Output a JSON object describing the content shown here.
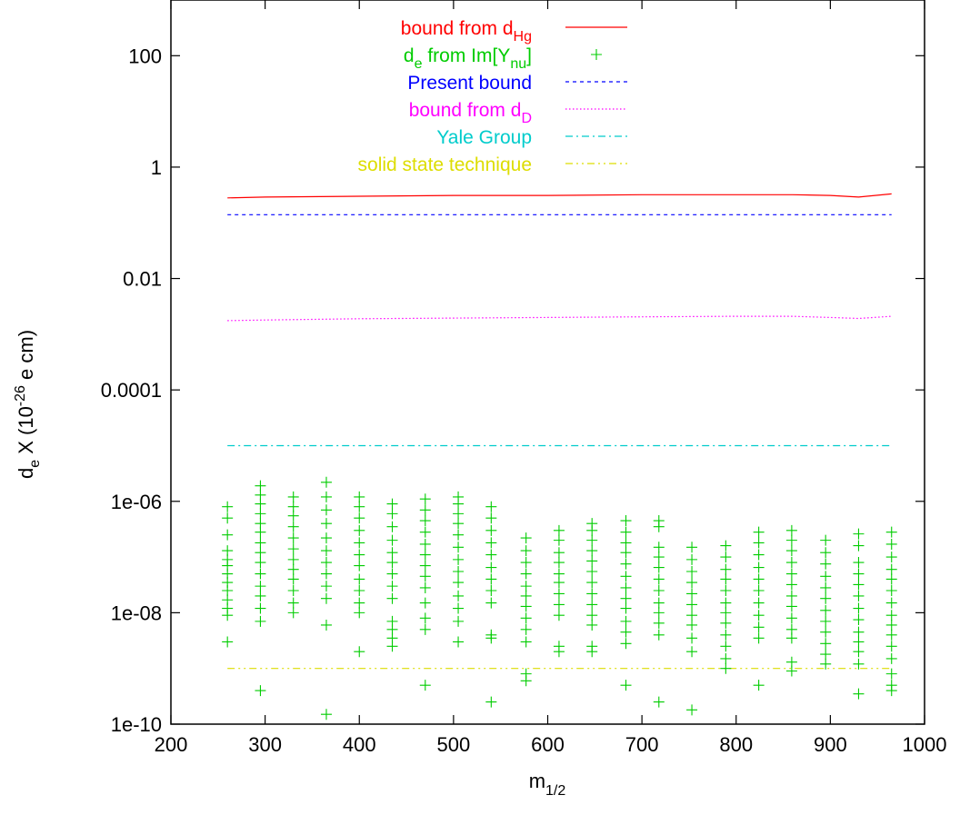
{
  "chart_data": {
    "type": "line",
    "xlabel": {
      "base": "m",
      "sub": "1/2"
    },
    "ylabel": {
      "main": "d",
      "sub": "e",
      "rest": "  X (10",
      "sup": "-26",
      "tail": " e cm)"
    },
    "xlim": [
      200,
      1000
    ],
    "ylim": [
      1e-10,
      1000
    ],
    "y_scale": "log",
    "grid": false,
    "legend_position": "top-center",
    "x_ticks": [
      200,
      300,
      400,
      500,
      600,
      700,
      800,
      900,
      1000
    ],
    "x_tick_labels": [
      "200",
      "300",
      "400",
      "500",
      "600",
      "700",
      "800",
      "900",
      "1000"
    ],
    "y_ticks": [
      1e-10,
      1e-08,
      1e-06,
      0.0001,
      0.01,
      1,
      100
    ],
    "y_tick_labels": [
      "1e-10",
      "1e-08",
      "1e-06",
      "0.0001",
      "0.01",
      "1",
      "100"
    ],
    "legend": [
      {
        "parts": [
          {
            "t": "bound from d"
          },
          {
            "t": "Hg",
            "sub": true
          }
        ],
        "color": "#ff0000",
        "style": "solid"
      },
      {
        "parts": [
          {
            "t": "d"
          },
          {
            "t": "e",
            "sub": true
          },
          {
            "t": " from Im[Y"
          },
          {
            "t": "nu",
            "sub": true
          },
          {
            "t": "]"
          }
        ],
        "color": "#00cc00",
        "style": "points"
      },
      {
        "parts": [
          {
            "t": "Present bound"
          }
        ],
        "color": "#0000ff",
        "style": "dashed"
      },
      {
        "parts": [
          {
            "t": "bound from d"
          },
          {
            "t": "D",
            "sub": true
          }
        ],
        "color": "#ff00ff",
        "style": "dotted"
      },
      {
        "parts": [
          {
            "t": "Yale Group"
          }
        ],
        "color": "#00cccc",
        "style": "dashdot"
      },
      {
        "parts": [
          {
            "t": "solid state technique"
          }
        ],
        "color": "#dddd00",
        "style": "dashdotdot"
      }
    ],
    "series": [
      {
        "name": "bound from d_Hg",
        "color": "#ff0000",
        "style": "solid",
        "x": [
          260,
          300,
          400,
          500,
          600,
          700,
          800,
          860,
          900,
          930,
          965
        ],
        "y": [
          0.28,
          0.29,
          0.3,
          0.31,
          0.31,
          0.32,
          0.32,
          0.32,
          0.31,
          0.29,
          0.33
        ]
      },
      {
        "name": "Present bound",
        "color": "#0000ff",
        "style": "dashed",
        "x": [
          260,
          965
        ],
        "y": [
          0.14,
          0.14
        ]
      },
      {
        "name": "bound from d_D",
        "color": "#ff00ff",
        "style": "dotted",
        "x": [
          260,
          300,
          400,
          500,
          600,
          700,
          800,
          860,
          900,
          930,
          965
        ],
        "y": [
          0.00175,
          0.0018,
          0.0019,
          0.00195,
          0.002,
          0.00205,
          0.0021,
          0.0021,
          0.002,
          0.00192,
          0.0021
        ]
      },
      {
        "name": "Yale Group",
        "color": "#00cccc",
        "style": "dashdot",
        "x": [
          260,
          965
        ],
        "y": [
          1e-05,
          1e-05
        ]
      },
      {
        "name": "solid state technique",
        "color": "#dddd00",
        "style": "dashdotdot",
        "x": [
          260,
          965
        ],
        "y": [
          1e-09,
          1e-09
        ]
      }
    ],
    "scatter": {
      "name": "d_e from Im[Y_nu]",
      "color": "#00cc00",
      "columns": [
        {
          "x": 260,
          "y": [
            8e-07,
            5e-07,
            2.5e-07,
            1.3e-07,
            9e-08,
            7e-08,
            5e-08,
            3.5e-08,
            2.5e-08,
            1.7e-08,
            1.2e-08,
            9e-09,
            3e-09
          ]
        },
        {
          "x": 295,
          "y": [
            1.9e-06,
            1.3e-06,
            9e-07,
            6e-07,
            4e-07,
            2.8e-07,
            1.8e-07,
            1.2e-07,
            8e-08,
            5e-08,
            3e-08,
            2e-08,
            1.2e-08,
            7e-09,
            4e-10
          ]
        },
        {
          "x": 330,
          "y": [
            1.2e-06,
            8e-07,
            5.5e-07,
            3.5e-07,
            2.2e-07,
            1.4e-07,
            9e-08,
            6e-08,
            4e-08,
            2.5e-08,
            1.5e-08,
            1e-08
          ]
        },
        {
          "x": 365,
          "y": [
            2.2e-06,
            1.2e-06,
            7e-07,
            4e-07,
            2.2e-07,
            1.3e-07,
            8e-08,
            5e-08,
            3e-08,
            1.8e-08,
            6e-09,
            1.5e-10
          ]
        },
        {
          "x": 400,
          "y": [
            1.2e-06,
            8e-07,
            5e-07,
            3e-07,
            1.8e-07,
            1.1e-07,
            7e-08,
            4e-08,
            2.5e-08,
            1.5e-08,
            1e-08,
            2e-09
          ]
        },
        {
          "x": 435,
          "y": [
            9e-07,
            6e-07,
            3.5e-07,
            2e-07,
            1.2e-07,
            8e-08,
            5e-08,
            3e-08,
            1.8e-08,
            7e-09,
            5e-09,
            3.5e-09,
            2.5e-09
          ]
        },
        {
          "x": 470,
          "y": [
            1.1e-06,
            7e-07,
            4.5e-07,
            2.8e-07,
            1.7e-07,
            1.1e-07,
            7e-08,
            4.5e-08,
            2.8e-08,
            1.5e-08,
            8e-09,
            5e-09,
            5e-10
          ]
        },
        {
          "x": 505,
          "y": [
            1.2e-06,
            9e-07,
            6e-07,
            4e-07,
            2.5e-07,
            1.5e-07,
            9e-08,
            5.5e-08,
            3.5e-08,
            2e-08,
            1.2e-08,
            7e-09,
            3e-09
          ]
        },
        {
          "x": 540,
          "y": [
            8e-07,
            5e-07,
            3e-07,
            1.8e-07,
            1.1e-07,
            6.5e-08,
            4e-08,
            2.5e-08,
            1.5e-08,
            4e-09,
            3.5e-09,
            2.5e-10
          ]
        },
        {
          "x": 577,
          "y": [
            2.2e-07,
            1.3e-07,
            8e-08,
            5e-08,
            3e-08,
            2e-08,
            1.3e-08,
            8e-09,
            5e-09,
            3e-09,
            8e-10,
            6e-10
          ]
        },
        {
          "x": 612,
          "y": [
            3e-07,
            2e-07,
            1.2e-07,
            8e-08,
            5e-08,
            3.5e-08,
            2.2e-08,
            1.4e-08,
            9e-09,
            2.5e-09,
            2e-09
          ]
        },
        {
          "x": 647,
          "y": [
            4e-07,
            3e-07,
            2e-07,
            1.3e-07,
            8.5e-08,
            5.5e-08,
            3.5e-08,
            2.2e-08,
            1.4e-08,
            9e-09,
            6e-09,
            2.5e-09,
            2e-09
          ]
        },
        {
          "x": 683,
          "y": [
            4.5e-07,
            2.8e-07,
            1.8e-07,
            1.2e-07,
            7.5e-08,
            4.5e-08,
            2.8e-08,
            1.8e-08,
            1.2e-08,
            7e-09,
            4.5e-09,
            2.8e-09,
            5e-10
          ]
        },
        {
          "x": 718,
          "y": [
            4.5e-07,
            3.5e-07,
            1.5e-07,
            1e-07,
            6.5e-08,
            4e-08,
            2.5e-08,
            1.5e-08,
            1e-08,
            6.5e-09,
            4e-09,
            2.5e-10
          ]
        },
        {
          "x": 753,
          "y": [
            1.5e-07,
            9e-08,
            5.5e-08,
            3.5e-08,
            2.2e-08,
            1.4e-08,
            9e-09,
            6e-09,
            3.5e-09,
            2e-09,
            1.8e-10
          ]
        },
        {
          "x": 789,
          "y": [
            1.6e-07,
            1e-07,
            6e-08,
            4e-08,
            2.5e-08,
            1.5e-08,
            1e-08,
            6.5e-09,
            4e-09,
            2.5e-09,
            1.5e-09,
            1e-09
          ]
        },
        {
          "x": 824,
          "y": [
            2.8e-07,
            1.8e-07,
            1.1e-07,
            6.5e-08,
            4e-08,
            2.5e-08,
            1.5e-08,
            9e-09,
            5.5e-09,
            3.5e-09,
            5e-10
          ]
        },
        {
          "x": 859,
          "y": [
            3e-07,
            2e-07,
            1.3e-07,
            8e-08,
            5e-08,
            3.2e-08,
            2e-08,
            1.3e-08,
            8e-09,
            5e-09,
            3.5e-09,
            1.3e-09,
            9e-10
          ]
        },
        {
          "x": 895,
          "y": [
            2e-07,
            1.2e-07,
            7.5e-08,
            4.5e-08,
            2.8e-08,
            1.8e-08,
            1.1e-08,
            7e-09,
            4.5e-09,
            2.8e-09,
            1.8e-09,
            1.2e-09
          ]
        },
        {
          "x": 930,
          "y": [
            2.6e-07,
            1.6e-07,
            8e-08,
            5e-08,
            3.2e-08,
            2e-08,
            1.2e-08,
            7.5e-09,
            4.5e-09,
            3e-09,
            2e-09,
            1.2e-09,
            3.5e-10
          ]
        },
        {
          "x": 965,
          "y": [
            2.8e-07,
            1.7e-07,
            1e-07,
            6e-08,
            4e-08,
            2.5e-08,
            1.5e-08,
            9e-09,
            6e-09,
            4e-09,
            2.5e-09,
            1.5e-09,
            8e-10,
            5e-10,
            4e-10
          ]
        }
      ]
    }
  }
}
